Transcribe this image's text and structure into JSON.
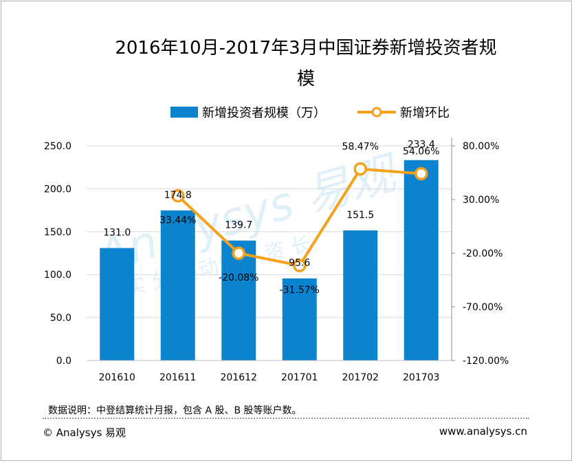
{
  "chart_data": {
    "type": "bar",
    "title": "2016年10月-2017年3月中国证券新增投资者规模",
    "title_lines": [
      "2016年10月-2017年3月中国证券新增投资者规",
      "模"
    ],
    "categories": [
      "201610",
      "201611",
      "201612",
      "201701",
      "201702",
      "201703"
    ],
    "series": [
      {
        "name": "新增投资者规模（万）",
        "type": "bar",
        "axis": "left",
        "color": "#0b83cf",
        "values": [
          131.0,
          174.8,
          139.7,
          95.6,
          151.5,
          233.4
        ],
        "labels": [
          "131.0",
          "174.8",
          "139.7",
          "95.6",
          "151.5",
          "233.4"
        ]
      },
      {
        "name": "新增环比",
        "type": "line",
        "axis": "right",
        "color": "#f5a11c",
        "values": [
          null,
          33.44,
          -20.08,
          -31.57,
          58.47,
          54.06
        ],
        "labels": [
          "",
          "33.44%",
          "-20.08%",
          "-31.57%",
          "58.47%",
          "54.06%"
        ]
      }
    ],
    "y_left": {
      "min": 0,
      "max": 250,
      "ticks": [
        "0.0",
        "50.0",
        "100.0",
        "150.0",
        "200.0",
        "250.0"
      ]
    },
    "y_right": {
      "min": -120,
      "max": 80,
      "ticks": [
        "-120.00%",
        "-70.00%",
        "-20.00%",
        "30.00%",
        "80.00%"
      ]
    },
    "grid": true,
    "legend_position": "top"
  },
  "watermark": {
    "brand_text": "Analysys 易观",
    "slogan": "实 分 驱动用户 资 长"
  },
  "footer": {
    "note": "数据说明：中登结算统计月报，包含 A 股、B 股等账户数。",
    "copyright": "© Analysys 易观",
    "website": "www.analysys.cn"
  }
}
